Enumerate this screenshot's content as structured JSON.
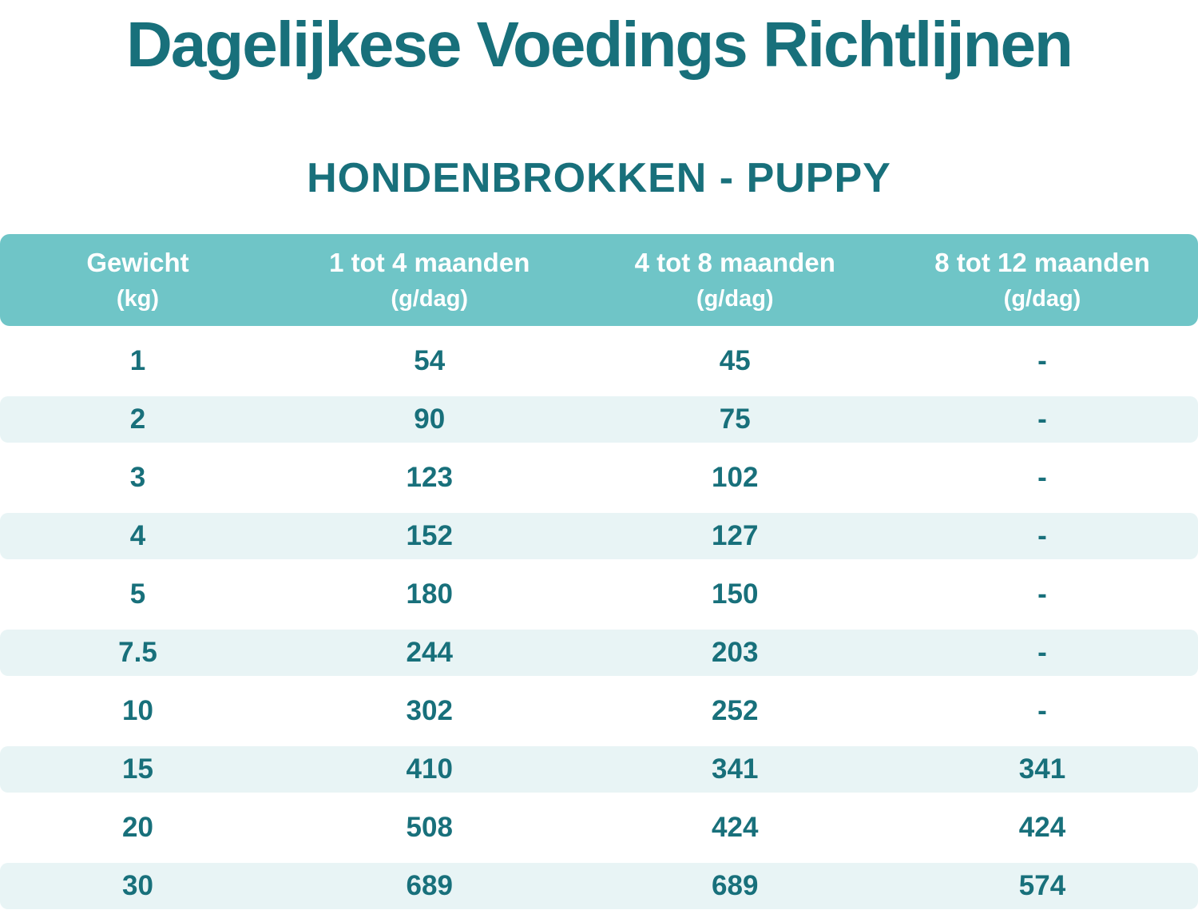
{
  "page": {
    "title": "Dagelijkese Voedings Richtlijnen",
    "subtitle": "HONDENBROKKEN - PUPPY"
  },
  "colors": {
    "teal_text": "#18707B",
    "header_bg": "#6FC5C7",
    "header_text": "#FFFFFF",
    "stripe_bg": "#E8F4F5",
    "background": "#FFFFFF"
  },
  "table": {
    "columns": [
      {
        "label": "Gewicht",
        "unit": "(kg)"
      },
      {
        "label": "1 tot 4 maanden",
        "unit": "(g/dag)"
      },
      {
        "label": "4 tot 8 maanden",
        "unit": "(g/dag)"
      },
      {
        "label": "8 tot 12 maanden",
        "unit": "(g/dag)"
      }
    ],
    "rows": [
      [
        "1",
        "54",
        "45",
        "-"
      ],
      [
        "2",
        "90",
        "75",
        "-"
      ],
      [
        "3",
        "123",
        "102",
        "-"
      ],
      [
        "4",
        "152",
        "127",
        "-"
      ],
      [
        "5",
        "180",
        "150",
        "-"
      ],
      [
        "7.5",
        "244",
        "203",
        "-"
      ],
      [
        "10",
        "302",
        "252",
        "-"
      ],
      [
        "15",
        "410",
        "341",
        "341"
      ],
      [
        "20",
        "508",
        "424",
        "424"
      ],
      [
        "30",
        "689",
        "689",
        "574"
      ]
    ]
  },
  "chart_data": {
    "type": "table",
    "title": "Dagelijkese Voedings Richtlijnen",
    "subtitle": "HONDENBROKKEN - PUPPY",
    "columns": [
      "Gewicht (kg)",
      "1 tot 4 maanden (g/dag)",
      "4 tot 8 maanden (g/dag)",
      "8 tot 12 maanden (g/dag)"
    ],
    "rows": [
      [
        1,
        54,
        45,
        null
      ],
      [
        2,
        90,
        75,
        null
      ],
      [
        3,
        123,
        102,
        null
      ],
      [
        4,
        152,
        127,
        null
      ],
      [
        5,
        180,
        150,
        null
      ],
      [
        7.5,
        244,
        203,
        null
      ],
      [
        10,
        302,
        252,
        null
      ],
      [
        15,
        410,
        341,
        341
      ],
      [
        20,
        508,
        424,
        424
      ],
      [
        30,
        689,
        689,
        574
      ]
    ]
  }
}
